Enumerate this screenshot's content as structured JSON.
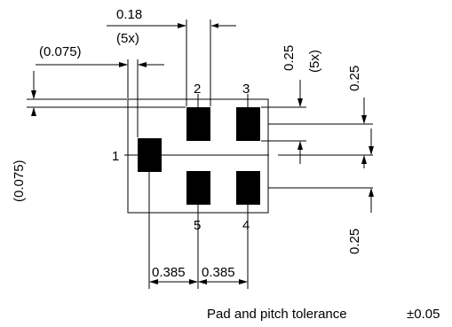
{
  "dimensions": {
    "pad_width": "0.18",
    "pad_width_count": "(5x)",
    "pad_length": "0.25",
    "pad_length_count": "(5x)",
    "edge_offset_x": "(0.075)",
    "edge_offset_y": "(0.075)",
    "pitch_y_top": "0.25",
    "pitch_y_bottom": "0.25",
    "pitch_x_left": "0.385",
    "pitch_x_right": "0.385"
  },
  "pins": {
    "pin1": "1",
    "pin2": "2",
    "pin3": "3",
    "pin4": "4",
    "pin5": "5"
  },
  "note": {
    "label": "Pad and pitch tolerance",
    "value": "±0.05"
  }
}
